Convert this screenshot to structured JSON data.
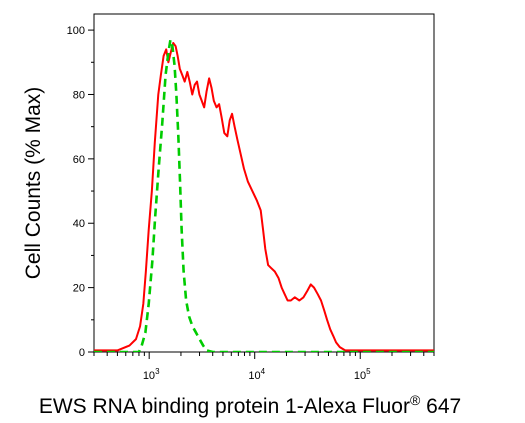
{
  "chart_data": {
    "type": "line",
    "title": "",
    "xlabel_main": "EWS RNA binding protein 1-Alexa Fluor",
    "xlabel_sup": "®",
    "xlabel_tail": " 647",
    "ylabel": "Cell Counts (% Max)",
    "x_scale": "log",
    "xlim": [
      300,
      500000
    ],
    "ylim": [
      0,
      105
    ],
    "y_ticks": [
      0,
      20,
      40,
      60,
      80,
      100
    ],
    "y_tick_labels": [
      "0",
      "20",
      "40",
      "60",
      "80",
      "100"
    ],
    "x_ticks": [
      {
        "value": 1000,
        "base": "10",
        "exp": "3"
      },
      {
        "value": 10000,
        "base": "10",
        "exp": "4"
      },
      {
        "value": 100000,
        "base": "10",
        "exp": "5"
      }
    ],
    "grid": false,
    "legend": "none",
    "series": [
      {
        "color": "#ff0000",
        "style": "solid",
        "points": [
          [
            300,
            0.5
          ],
          [
            500,
            0.5
          ],
          [
            650,
            2
          ],
          [
            750,
            4
          ],
          [
            820,
            8
          ],
          [
            880,
            15
          ],
          [
            930,
            25
          ],
          [
            990,
            38
          ],
          [
            1060,
            50
          ],
          [
            1130,
            65
          ],
          [
            1220,
            80
          ],
          [
            1290,
            86
          ],
          [
            1370,
            92
          ],
          [
            1450,
            94
          ],
          [
            1520,
            90
          ],
          [
            1600,
            93
          ],
          [
            1690,
            96
          ],
          [
            1780,
            95
          ],
          [
            1860,
            92
          ],
          [
            1950,
            88
          ],
          [
            2060,
            86
          ],
          [
            2170,
            84
          ],
          [
            2300,
            87
          ],
          [
            2420,
            84
          ],
          [
            2560,
            80
          ],
          [
            2700,
            83
          ],
          [
            2840,
            84
          ],
          [
            2990,
            80
          ],
          [
            3150,
            78
          ],
          [
            3320,
            76
          ],
          [
            3500,
            81
          ],
          [
            3700,
            85
          ],
          [
            3900,
            82
          ],
          [
            4100,
            78
          ],
          [
            4350,
            76
          ],
          [
            4600,
            77
          ],
          [
            4850,
            73
          ],
          [
            5150,
            68
          ],
          [
            5500,
            67
          ],
          [
            5800,
            72
          ],
          [
            6100,
            74
          ],
          [
            6450,
            70
          ],
          [
            6850,
            66
          ],
          [
            7300,
            62
          ],
          [
            7900,
            57
          ],
          [
            8600,
            53
          ],
          [
            9500,
            50
          ],
          [
            10500,
            47
          ],
          [
            11400,
            44
          ],
          [
            12000,
            38
          ],
          [
            12600,
            32
          ],
          [
            13400,
            27
          ],
          [
            14400,
            26
          ],
          [
            15500,
            25
          ],
          [
            16800,
            23
          ],
          [
            18000,
            20
          ],
          [
            19200,
            18
          ],
          [
            20500,
            16
          ],
          [
            22000,
            16
          ],
          [
            24000,
            17
          ],
          [
            26500,
            16
          ],
          [
            29000,
            17
          ],
          [
            31500,
            19
          ],
          [
            34000,
            21
          ],
          [
            36500,
            20
          ],
          [
            39500,
            18
          ],
          [
            42500,
            16
          ],
          [
            45500,
            13
          ],
          [
            48500,
            10
          ],
          [
            52000,
            7
          ],
          [
            55500,
            5
          ],
          [
            59000,
            3
          ],
          [
            64000,
            1.5
          ],
          [
            72000,
            0.5
          ],
          [
            500000,
            0.5
          ]
        ]
      },
      {
        "color": "#00cc00",
        "style": "dashed",
        "points": [
          [
            300,
            0
          ],
          [
            800,
            0
          ],
          [
            850,
            2
          ],
          [
            920,
            6
          ],
          [
            990,
            15
          ],
          [
            1070,
            28
          ],
          [
            1140,
            42
          ],
          [
            1230,
            57
          ],
          [
            1330,
            71
          ],
          [
            1430,
            86
          ],
          [
            1520,
            93
          ],
          [
            1590,
            97
          ],
          [
            1660,
            95
          ],
          [
            1740,
            89
          ],
          [
            1810,
            80
          ],
          [
            1890,
            67
          ],
          [
            1960,
            53
          ],
          [
            2030,
            38
          ],
          [
            2120,
            25
          ],
          [
            2240,
            16
          ],
          [
            2390,
            11
          ],
          [
            2570,
            8
          ],
          [
            2780,
            6
          ],
          [
            3000,
            4
          ],
          [
            3250,
            2
          ],
          [
            3500,
            0.5
          ],
          [
            4000,
            0
          ],
          [
            500000,
            0
          ]
        ]
      }
    ]
  }
}
